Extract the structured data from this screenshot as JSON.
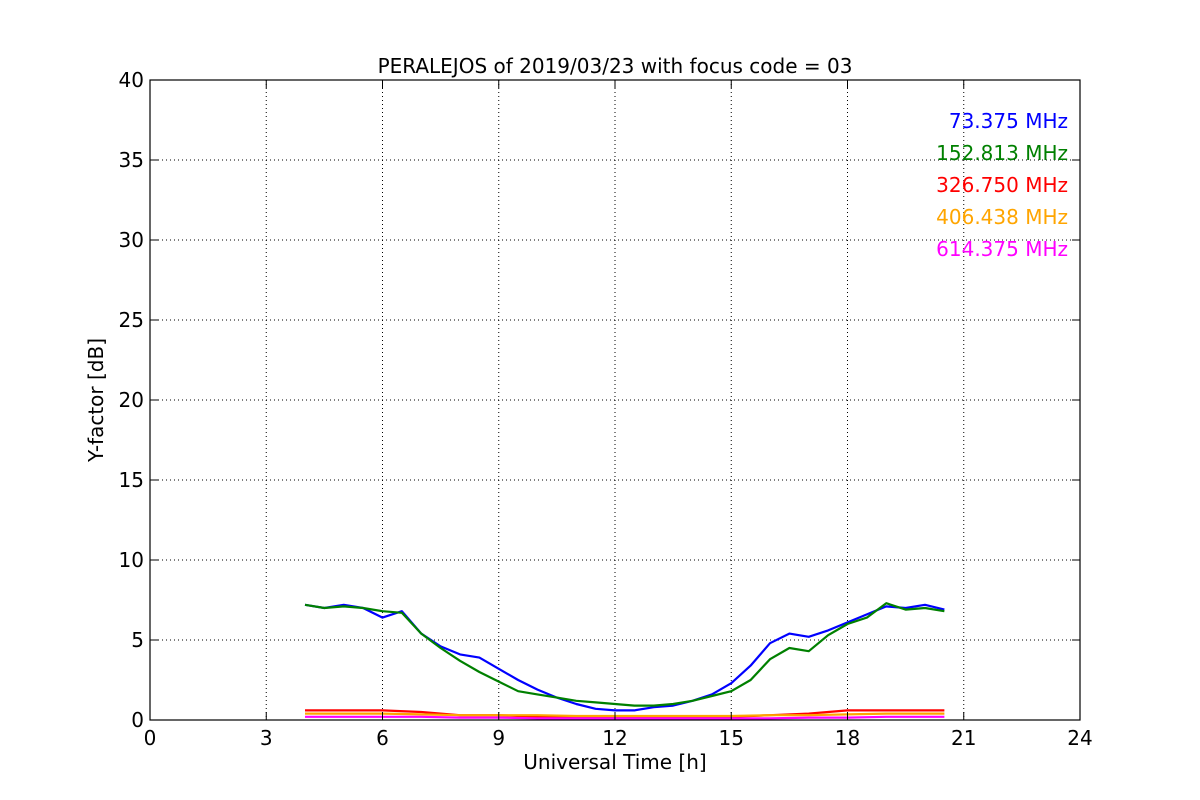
{
  "chart_data": {
    "type": "line",
    "title": "PERALEJOS of 2019/03/23 with focus code = 03",
    "xlabel": "Universal Time [h]",
    "ylabel": "Y-factor [dB]",
    "xlim": [
      0,
      24
    ],
    "ylim": [
      0,
      40
    ],
    "xticks": [
      "0",
      "3",
      "6",
      "9",
      "12",
      "15",
      "18",
      "21",
      "24"
    ],
    "yticks": [
      "0",
      "5",
      "10",
      "15",
      "20",
      "25",
      "30",
      "35",
      "40"
    ],
    "grid": true,
    "legend_position": "top-right",
    "series": [
      {
        "name": "73.375 MHz",
        "color": "#0000ff",
        "x": [
          4.0,
          4.5,
          5.0,
          5.5,
          6.0,
          6.5,
          7.0,
          7.5,
          8.0,
          8.5,
          9.0,
          9.5,
          10.0,
          10.5,
          11.0,
          11.5,
          12.0,
          12.5,
          13.0,
          13.5,
          14.0,
          14.5,
          15.0,
          15.5,
          16.0,
          16.5,
          17.0,
          17.5,
          18.0,
          18.5,
          19.0,
          19.5,
          20.0,
          20.5
        ],
        "y": [
          7.2,
          7.0,
          7.2,
          7.0,
          6.4,
          6.8,
          5.4,
          4.6,
          4.1,
          3.9,
          3.2,
          2.5,
          1.9,
          1.4,
          1.0,
          0.7,
          0.6,
          0.6,
          0.8,
          0.9,
          1.2,
          1.6,
          2.3,
          3.4,
          4.8,
          5.4,
          5.2,
          5.6,
          6.1,
          6.6,
          7.1,
          7.0,
          7.2,
          6.9
        ]
      },
      {
        "name": "152.813 MHz",
        "color": "#008000",
        "x": [
          4.0,
          4.5,
          5.0,
          5.5,
          6.0,
          6.5,
          7.0,
          7.5,
          8.0,
          8.5,
          9.0,
          9.5,
          10.0,
          10.5,
          11.0,
          11.5,
          12.0,
          12.5,
          13.0,
          13.5,
          14.0,
          14.5,
          15.0,
          15.5,
          16.0,
          16.5,
          17.0,
          17.5,
          18.0,
          18.5,
          19.0,
          19.5,
          20.0,
          20.5
        ],
        "y": [
          7.2,
          7.0,
          7.1,
          7.0,
          6.8,
          6.7,
          5.4,
          4.5,
          3.7,
          3.0,
          2.4,
          1.8,
          1.6,
          1.4,
          1.2,
          1.1,
          1.0,
          0.9,
          0.9,
          1.0,
          1.2,
          1.5,
          1.8,
          2.5,
          3.8,
          4.5,
          4.3,
          5.3,
          6.0,
          6.4,
          7.3,
          6.9,
          7.0,
          6.8
        ]
      },
      {
        "name": "326.750 MHz",
        "color": "#ff0000",
        "x": [
          4.0,
          5.0,
          6.0,
          7.0,
          8.0,
          9.0,
          10.0,
          11.0,
          12.0,
          13.0,
          14.0,
          15.0,
          16.0,
          17.0,
          18.0,
          19.0,
          20.0,
          20.5
        ],
        "y": [
          0.6,
          0.6,
          0.6,
          0.5,
          0.3,
          0.3,
          0.2,
          0.2,
          0.2,
          0.2,
          0.2,
          0.2,
          0.3,
          0.4,
          0.6,
          0.6,
          0.6,
          0.6
        ]
      },
      {
        "name": "406.438 MHz",
        "color": "#ffa500",
        "x": [
          4.0,
          5.0,
          6.0,
          7.0,
          8.0,
          9.0,
          10.0,
          11.0,
          12.0,
          13.0,
          14.0,
          15.0,
          16.0,
          17.0,
          18.0,
          19.0,
          20.0,
          20.5
        ],
        "y": [
          0.4,
          0.4,
          0.4,
          0.35,
          0.3,
          0.3,
          0.3,
          0.25,
          0.25,
          0.25,
          0.25,
          0.25,
          0.3,
          0.3,
          0.35,
          0.4,
          0.4,
          0.4
        ]
      },
      {
        "name": "614.375 MHz",
        "color": "#ff00ff",
        "x": [
          4.0,
          5.0,
          6.0,
          7.0,
          8.0,
          9.0,
          10.0,
          11.0,
          12.0,
          13.0,
          14.0,
          15.0,
          16.0,
          17.0,
          18.0,
          19.0,
          20.0,
          20.5
        ],
        "y": [
          0.2,
          0.2,
          0.2,
          0.2,
          0.15,
          0.15,
          0.1,
          0.1,
          0.1,
          0.1,
          0.1,
          0.1,
          0.1,
          0.15,
          0.15,
          0.2,
          0.2,
          0.2
        ]
      }
    ]
  }
}
